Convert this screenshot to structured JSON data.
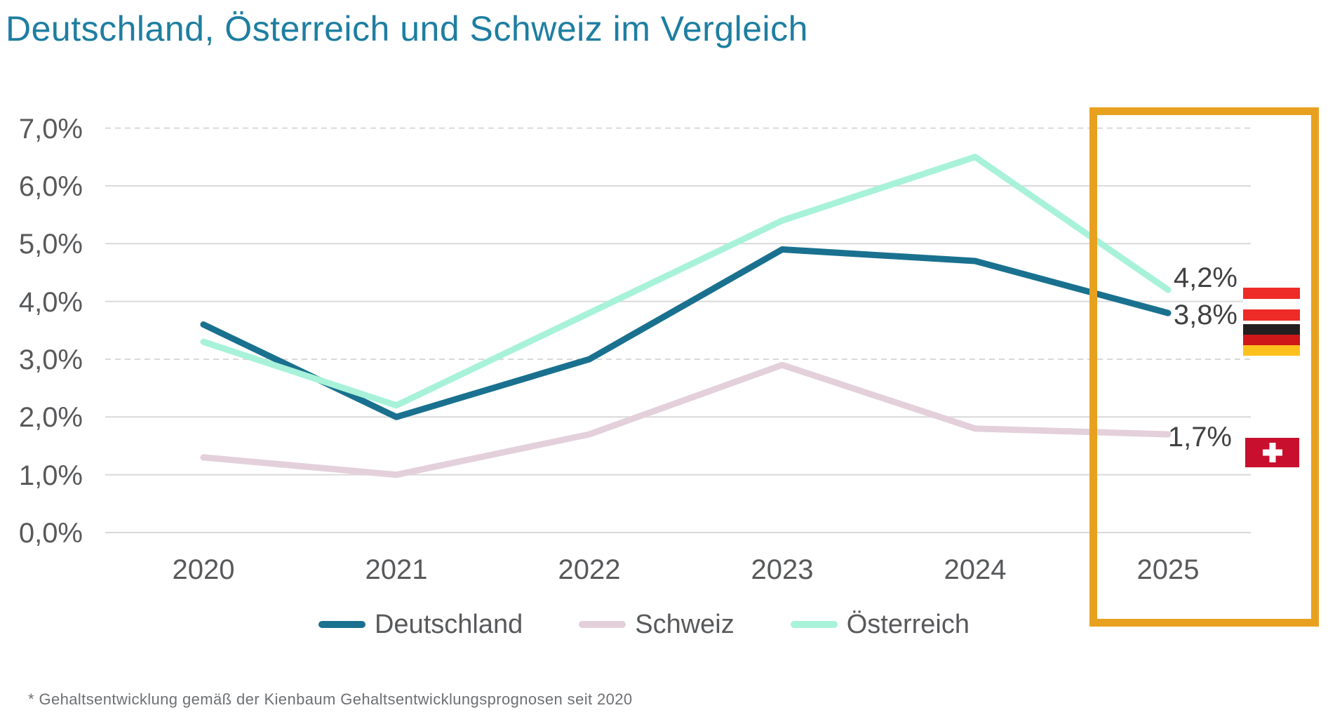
{
  "title": "Deutschland, Österreich und Schweiz im Vergleich",
  "footnote": "* Gehaltsentwicklung gemäß der Kienbaum Gehaltsentwicklungsprognosen seit 2020",
  "theme": {
    "accent_teal": "#1e7ea1",
    "highlight_orange": "#e8a11e",
    "grid_color": "#d9d9d9",
    "label_color": "#58595b",
    "annotation_color": "#414042",
    "footnote_color": "#6d6f72"
  },
  "chart_data": {
    "type": "line",
    "categories": [
      "2020",
      "2021",
      "2022",
      "2023",
      "2024",
      "2025"
    ],
    "series": [
      {
        "name": "Deutschland",
        "color": "#19718f",
        "values": [
          3.6,
          2.0,
          3.0,
          4.9,
          4.7,
          3.8
        ]
      },
      {
        "name": "Schweiz",
        "color": "#e3d0db",
        "values": [
          1.3,
          1.0,
          1.7,
          2.9,
          1.8,
          1.7
        ]
      },
      {
        "name": "Österreich",
        "color": "#a8f2da",
        "values": [
          3.3,
          2.2,
          3.8,
          5.4,
          6.5,
          4.2
        ]
      }
    ],
    "ylim": [
      0,
      7
    ],
    "ytick_labels": [
      "0,0%",
      "1,0%",
      "2,0%",
      "3,0%",
      "4,0%",
      "5,0%",
      "6,0%",
      "7,0%"
    ],
    "grid": true,
    "legend_position": "bottom",
    "highlighted_category": "2025"
  },
  "annotations": {
    "oesterreich_2025": "4,2%",
    "deutschland_2025": "3,8%",
    "schweiz_2025": "1,7%"
  },
  "flags": {
    "austria": {
      "red": "#ee2b26",
      "white": "#ffffff"
    },
    "germany": {
      "black": "#242021",
      "red": "#cd1719",
      "gold": "#fcc11c"
    },
    "switzerland": {
      "red": "#c8102e",
      "cross": "#ffffff"
    }
  }
}
